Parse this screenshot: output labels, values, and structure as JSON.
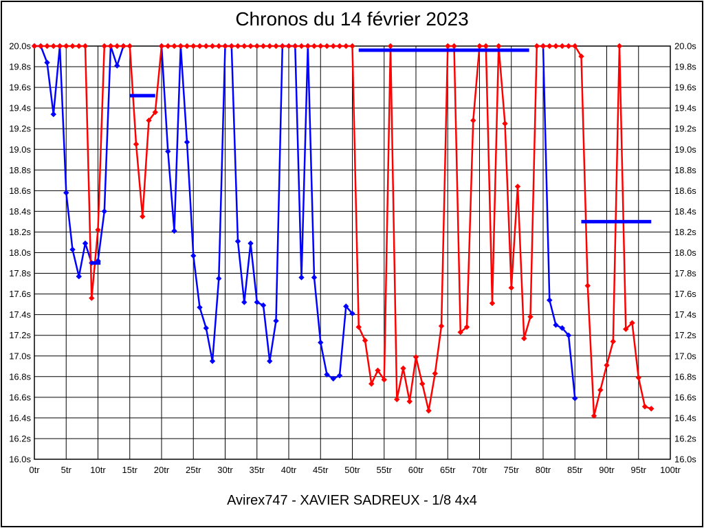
{
  "page": {
    "title": "Chronos du 14 février 2023",
    "footer": "Avirex747 - XAVIER SADREUX - 1/8 4x4"
  },
  "chart_data": {
    "type": "line",
    "title": "Chronos du 14 février 2023",
    "subtitle": "Avirex747 - XAVIER SADREUX - 1/8 4x4",
    "x_unit": "tr",
    "y_unit": "s",
    "xlim": [
      0,
      100
    ],
    "ylim": [
      16.0,
      20.0
    ],
    "x_tick_step": 5,
    "y_tick_step": 0.2,
    "clip_max": 20.0,
    "grid": true,
    "x_ticks": [
      "0tr",
      "5tr",
      "10tr",
      "15tr",
      "20tr",
      "25tr",
      "30tr",
      "35tr",
      "40tr",
      "45tr",
      "50tr",
      "55tr",
      "60tr",
      "65tr",
      "70tr",
      "75tr",
      "80tr",
      "85tr",
      "90tr",
      "95tr",
      "100tr"
    ],
    "y_ticks": [
      "20.0s",
      "19.8s",
      "19.6s",
      "19.4s",
      "19.2s",
      "19.0s",
      "18.8s",
      "18.6s",
      "18.4s",
      "18.2s",
      "18.0s",
      "17.8s",
      "17.6s",
      "17.4s",
      "17.2s",
      "17.0s",
      "16.8s",
      "16.6s",
      "16.4s",
      "16.2s",
      "16.0s"
    ],
    "colors": {
      "blue_series": "#0000ff",
      "red_series": "#ff0000",
      "grid": "#000000"
    },
    "series": [
      {
        "name": "blue-run-1",
        "color": "#0000ff",
        "start_lap": 0,
        "values": [
          20.0,
          20.0,
          19.84,
          19.34,
          20.0,
          18.58,
          18.03,
          17.77,
          18.09,
          17.9,
          17.92,
          18.4,
          20.0,
          19.81,
          20.0
        ]
      },
      {
        "name": "blue-run-2",
        "color": "#0000ff",
        "start_lap": 20,
        "values": [
          20.0,
          18.98,
          18.21,
          20.0,
          19.07,
          17.97,
          17.47,
          17.27,
          16.95,
          17.75,
          20.0,
          20.0,
          18.11,
          17.52,
          18.09,
          17.52,
          17.49,
          16.95,
          17.34,
          20.0,
          20.0,
          20.0,
          17.76,
          20.0,
          17.76,
          17.13,
          16.82,
          16.78,
          16.81,
          17.48,
          17.41
        ]
      },
      {
        "name": "blue-run-3",
        "color": "#0000ff",
        "start_lap": 80,
        "values": [
          20.0,
          17.54,
          17.3,
          17.27,
          17.2,
          16.59
        ]
      },
      {
        "name": "red-laps",
        "color": "#ff0000",
        "start_lap": 0,
        "values": [
          20.0,
          20.0,
          20.0,
          20.0,
          20.0,
          20.0,
          20.0,
          20.0,
          20.0,
          17.56,
          18.22,
          20.0,
          20.0,
          20.0,
          20.0,
          20.0,
          19.05,
          18.35,
          19.28,
          19.36,
          20.0,
          20.0,
          20.0,
          20.0,
          20.0,
          20.0,
          20.0,
          20.0,
          20.0,
          20.0,
          20.0,
          20.0,
          20.0,
          20.0,
          20.0,
          20.0,
          20.0,
          20.0,
          20.0,
          20.0,
          20.0,
          20.0,
          20.0,
          20.0,
          20.0,
          20.0,
          20.0,
          20.0,
          20.0,
          20.0,
          20.0,
          17.28,
          17.15,
          16.73,
          16.86,
          16.77,
          20.0,
          16.58,
          16.88,
          16.56,
          16.99,
          16.73,
          16.47,
          16.83,
          17.29,
          20.0,
          20.0,
          17.23,
          17.28,
          19.28,
          20.0,
          20.0,
          17.51,
          20.0,
          19.25,
          17.66,
          18.64,
          17.17,
          17.38,
          20.0,
          20.0,
          20.0,
          20.0,
          20.0,
          20.0,
          20.0,
          19.9,
          17.68,
          16.42,
          16.67,
          16.91,
          17.14,
          20.0,
          17.26,
          17.32,
          16.79,
          16.51,
          16.49
        ]
      }
    ],
    "reference_bars": [
      {
        "name": "average-bar-1",
        "lap_start": 8.8,
        "lap_end": 10.4,
        "time": 17.9,
        "color": "#0000ff"
      },
      {
        "name": "average-bar-2",
        "lap_start": 15.0,
        "lap_end": 19.0,
        "time": 19.52,
        "color": "#0000ff"
      },
      {
        "name": "average-bar-3",
        "lap_start": 51.0,
        "lap_end": 77.8,
        "time": 19.96,
        "color": "#0000ff"
      },
      {
        "name": "average-bar-4",
        "lap_start": 86.0,
        "lap_end": 97.0,
        "time": 18.3,
        "color": "#0000ff"
      }
    ],
    "legend": null
  }
}
